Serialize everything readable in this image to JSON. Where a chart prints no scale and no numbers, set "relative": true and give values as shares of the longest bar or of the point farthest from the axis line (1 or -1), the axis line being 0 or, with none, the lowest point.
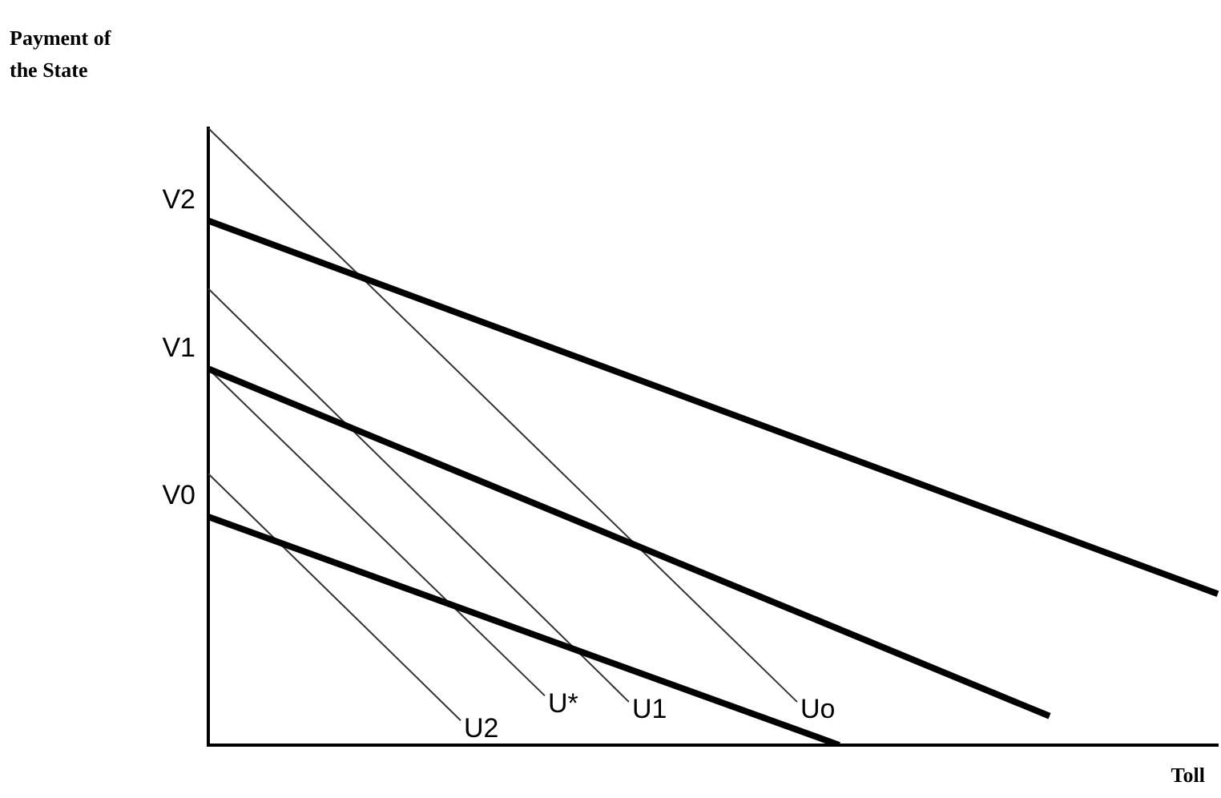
{
  "chart_data": {
    "type": "line",
    "relative": true,
    "annotations": [
      "Payment of the State"
    ],
    "xlabel": "Toll",
    "legend": false,
    "grid": false,
    "marker": "none",
    "categories": [
      null,
      null,
      null,
      null,
      null,
      null,
      null,
      null,
      null,
      null,
      null,
      null,
      null,
      null,
      null,
      null,
      null,
      null,
      null,
      null,
      null,
      null,
      null,
      null,
      null
    ],
    "series": [
      {
        "name": "V2",
        "color": "#000000",
        "values": [
          0.85,
          null,
          null,
          null,
          null,
          null,
          null,
          null,
          null,
          null,
          null,
          null,
          null,
          null,
          null,
          null,
          null,
          null,
          null,
          null,
          null,
          null,
          null,
          null,
          0.245
        ]
      },
      {
        "name": "V1",
        "color": "#000000",
        "values": [
          0.61,
          null,
          null,
          null,
          null,
          null,
          null,
          null,
          null,
          null,
          null,
          null,
          null,
          null,
          null,
          null,
          null,
          null,
          null,
          null,
          0.047,
          null,
          null,
          null,
          null
        ]
      },
      {
        "name": "V0",
        "color": "#000000",
        "values": [
          0.37,
          null,
          null,
          null,
          null,
          null,
          null,
          null,
          null,
          null,
          null,
          null,
          null,
          null,
          null,
          0,
          null,
          null,
          null,
          null,
          null,
          null,
          null,
          null,
          null
        ]
      },
      {
        "name": "Uo",
        "color": "#333333",
        "values": [
          1,
          null,
          null,
          null,
          null,
          null,
          null,
          null,
          null,
          null,
          null,
          null,
          null,
          null,
          0.07,
          null,
          null,
          null,
          null,
          null,
          null,
          null,
          null,
          null,
          null
        ]
      },
      {
        "name": "U1",
        "color": "#333333",
        "values": [
          0.74,
          null,
          null,
          null,
          null,
          null,
          null,
          null,
          null,
          null,
          0.07,
          null,
          null,
          null,
          null,
          null,
          null,
          null,
          null,
          null,
          null,
          null,
          null,
          null,
          null
        ]
      },
      {
        "name": "U*",
        "color": "#333333",
        "values": [
          0.61,
          null,
          null,
          null,
          null,
          null,
          null,
          null,
          0.08,
          null,
          null,
          null,
          null,
          null,
          null,
          null,
          null,
          null,
          null,
          null,
          null,
          null,
          null,
          null,
          null
        ]
      },
      {
        "name": "U2",
        "color": "#333333",
        "values": [
          0.44,
          null,
          null,
          null,
          null,
          null,
          0.04,
          null,
          null,
          null,
          null,
          null,
          null,
          null,
          null,
          null,
          null,
          null,
          null,
          null,
          null,
          null,
          null,
          null,
          null
        ]
      }
    ]
  }
}
